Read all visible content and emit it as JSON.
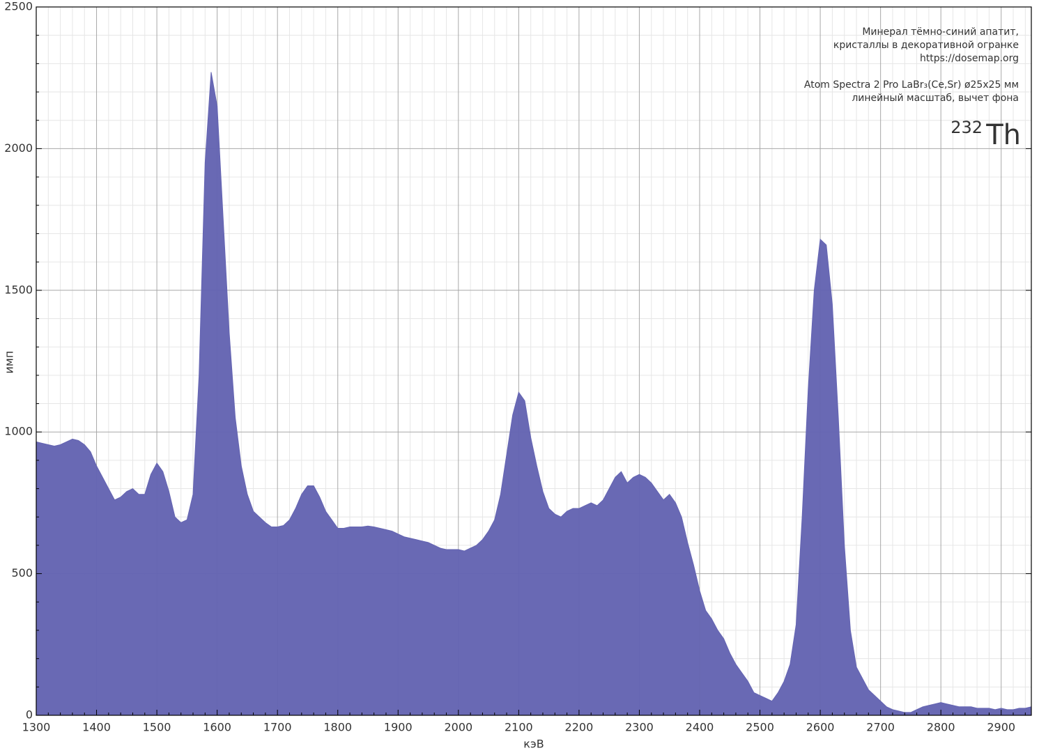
{
  "chart_data": {
    "type": "area",
    "x": [
      1300,
      1310,
      1320,
      1330,
      1340,
      1350,
      1360,
      1370,
      1380,
      1390,
      1400,
      1410,
      1420,
      1430,
      1440,
      1450,
      1460,
      1470,
      1480,
      1490,
      1500,
      1510,
      1520,
      1530,
      1540,
      1550,
      1560,
      1570,
      1580,
      1590,
      1600,
      1610,
      1620,
      1630,
      1640,
      1650,
      1660,
      1670,
      1680,
      1690,
      1700,
      1710,
      1720,
      1730,
      1740,
      1750,
      1760,
      1770,
      1780,
      1790,
      1800,
      1810,
      1820,
      1830,
      1840,
      1850,
      1860,
      1870,
      1880,
      1890,
      1900,
      1910,
      1920,
      1930,
      1940,
      1950,
      1960,
      1970,
      1980,
      1990,
      2000,
      2010,
      2020,
      2030,
      2040,
      2050,
      2060,
      2070,
      2080,
      2090,
      2100,
      2110,
      2120,
      2130,
      2140,
      2150,
      2160,
      2170,
      2180,
      2190,
      2200,
      2210,
      2220,
      2230,
      2240,
      2250,
      2260,
      2270,
      2280,
      2290,
      2300,
      2310,
      2320,
      2330,
      2340,
      2350,
      2360,
      2370,
      2380,
      2390,
      2400,
      2410,
      2420,
      2430,
      2440,
      2450,
      2460,
      2470,
      2480,
      2490,
      2500,
      2510,
      2520,
      2530,
      2540,
      2550,
      2560,
      2570,
      2580,
      2590,
      2600,
      2610,
      2620,
      2630,
      2640,
      2650,
      2660,
      2670,
      2680,
      2690,
      2700,
      2710,
      2720,
      2730,
      2740,
      2750,
      2760,
      2770,
      2780,
      2790,
      2800,
      2810,
      2820,
      2830,
      2840,
      2850,
      2860,
      2870,
      2880,
      2890,
      2900,
      2910,
      2920,
      2930,
      2940,
      2950
    ],
    "values": [
      965,
      960,
      955,
      950,
      955,
      965,
      975,
      970,
      955,
      930,
      880,
      840,
      800,
      760,
      770,
      790,
      800,
      780,
      780,
      850,
      890,
      860,
      790,
      700,
      680,
      690,
      780,
      1200,
      1950,
      2270,
      2150,
      1750,
      1350,
      1050,
      880,
      780,
      720,
      700,
      680,
      665,
      665,
      670,
      690,
      730,
      780,
      810,
      810,
      770,
      720,
      690,
      660,
      660,
      665,
      665,
      665,
      668,
      665,
      660,
      655,
      650,
      640,
      630,
      625,
      620,
      615,
      610,
      600,
      590,
      585,
      585,
      585,
      580,
      590,
      600,
      620,
      650,
      690,
      780,
      920,
      1060,
      1140,
      1110,
      980,
      880,
      790,
      730,
      710,
      700,
      720,
      730,
      730,
      740,
      750,
      740,
      760,
      800,
      840,
      860,
      820,
      840,
      850,
      840,
      820,
      790,
      760,
      780,
      750,
      700,
      610,
      530,
      440,
      370,
      340,
      300,
      270,
      220,
      180,
      150,
      120,
      80,
      70,
      60,
      50,
      80,
      120,
      180,
      320,
      700,
      1150,
      1500,
      1680,
      1660,
      1450,
      1050,
      600,
      300,
      170,
      130,
      90,
      70,
      50,
      30,
      20,
      15,
      10,
      10,
      20,
      30,
      35,
      40,
      45,
      40,
      35,
      30,
      30,
      30,
      25,
      25,
      25,
      20,
      25,
      20,
      20,
      25,
      25,
      30
    ],
    "color": "#6464b2",
    "xlim": [
      1300,
      2950
    ],
    "ylim": [
      0,
      2500
    ],
    "xticks": [
      1300,
      1400,
      1500,
      1600,
      1700,
      1800,
      1900,
      2000,
      2100,
      2200,
      2300,
      2400,
      2500,
      2600,
      2700,
      2800,
      2900
    ],
    "yticks": [
      0,
      500,
      1000,
      1500,
      2000,
      2500
    ],
    "x_minor_ticks": [
      1320,
      1340,
      1360,
      1380,
      1420,
      1440,
      1460,
      1480,
      1520,
      1540,
      1560,
      1580,
      1620,
      1640,
      1660,
      1680,
      1720,
      1740,
      1760,
      1780,
      1820,
      1840,
      1860,
      1880,
      1920,
      1940,
      1960,
      1980,
      2020,
      2040,
      2060,
      2080,
      2120,
      2140,
      2160,
      2180,
      2220,
      2240,
      2260,
      2280,
      2320,
      2340,
      2360,
      2380,
      2420,
      2440,
      2460,
      2480,
      2520,
      2540,
      2560,
      2580,
      2620,
      2640,
      2660,
      2680,
      2720,
      2740,
      2760,
      2780,
      2820,
      2840,
      2860,
      2880,
      2920,
      2940
    ],
    "y_minor_ticks": [
      100,
      200,
      300,
      400,
      600,
      700,
      800,
      900,
      1100,
      1200,
      1300,
      1400,
      1600,
      1700,
      1800,
      1900,
      2100,
      2200,
      2300,
      2400
    ],
    "grid": true,
    "xlabel": "кэВ",
    "ylabel": "имп",
    "annotation": [
      "Минерал тёмно-синий апатит,",
      "кристаллы в декоративной огранке",
      "https://dosemap.org",
      "Atom Spectra 2 Pro LaBr₃(Ce,Sr) ø25x25 мм",
      "линейный масштаб, вычет фона"
    ],
    "isotope": {
      "mass": "232",
      "symbol": "Th"
    }
  }
}
